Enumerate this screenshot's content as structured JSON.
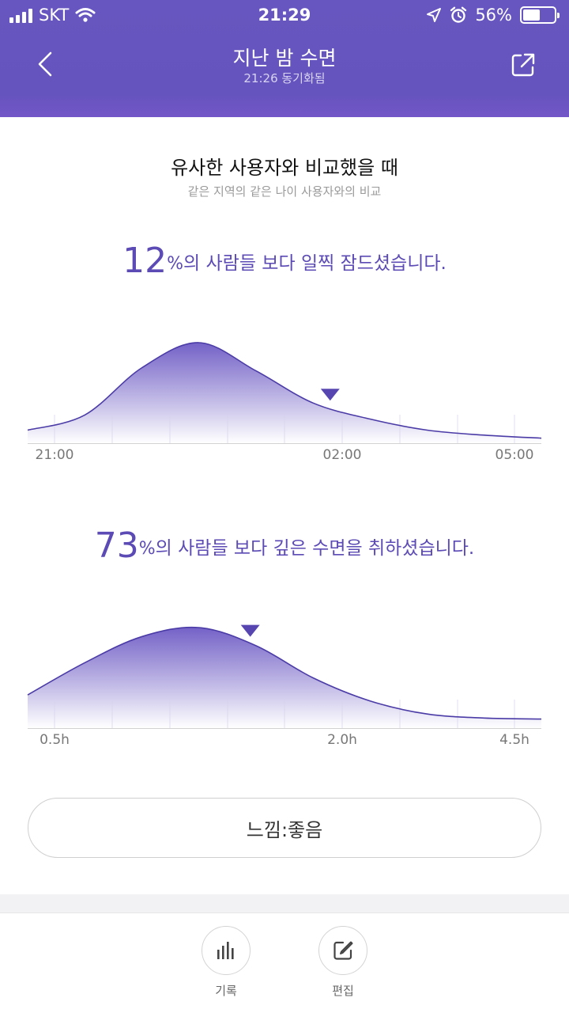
{
  "status_bar": {
    "carrier": "SKT",
    "time": "21:29",
    "battery_label": "56%",
    "battery_level": 0.56
  },
  "nav": {
    "title": "지난 밤 수면",
    "subtitle": "21:26 동기화됨"
  },
  "comparison": {
    "title": "유사한 사용자와 비교했을 때",
    "subtitle": "같은 지역의 같은 나이 사용자와의 비교"
  },
  "bedtime": {
    "percent": "12",
    "percent_sign": "%",
    "text": "의 사람들 보다 일찍 잠드셨습니다."
  },
  "deep_sleep": {
    "percent": "73",
    "percent_sign": "%",
    "text": "의 사람들 보다 깊은 수면을 취하셨습니다."
  },
  "chart_data": [
    {
      "type": "area",
      "x_tick_labels": [
        "21:00",
        "02:00",
        "05:00"
      ],
      "x": [
        0,
        1,
        2,
        3,
        4,
        5,
        6,
        7,
        8,
        9
      ],
      "values": [
        0.13,
        0.28,
        0.75,
        1.0,
        0.72,
        0.4,
        0.24,
        0.13,
        0.08,
        0.05
      ],
      "marker_x": 5.3,
      "grid_lines": true
    },
    {
      "type": "area",
      "x_tick_labels": [
        "0.5h",
        "2.0h",
        "4.5h"
      ],
      "x": [
        0,
        1,
        2,
        3,
        4,
        5,
        6,
        7,
        8,
        9
      ],
      "values": [
        0.33,
        0.65,
        0.91,
        1.0,
        0.82,
        0.5,
        0.27,
        0.14,
        0.1,
        0.09
      ],
      "marker_x": 3.9,
      "grid_lines": true
    }
  ],
  "feeling_button": {
    "label": "느낌:좋음"
  },
  "tabs": [
    {
      "label": "기록",
      "icon": "bar-chart-icon"
    },
    {
      "label": "편집",
      "icon": "edit-icon"
    }
  ],
  "colors": {
    "accent": "#5c4ab5",
    "header": "#6554bd",
    "curve": "#4a3ba6",
    "fill_top": "#6d5ac4"
  }
}
